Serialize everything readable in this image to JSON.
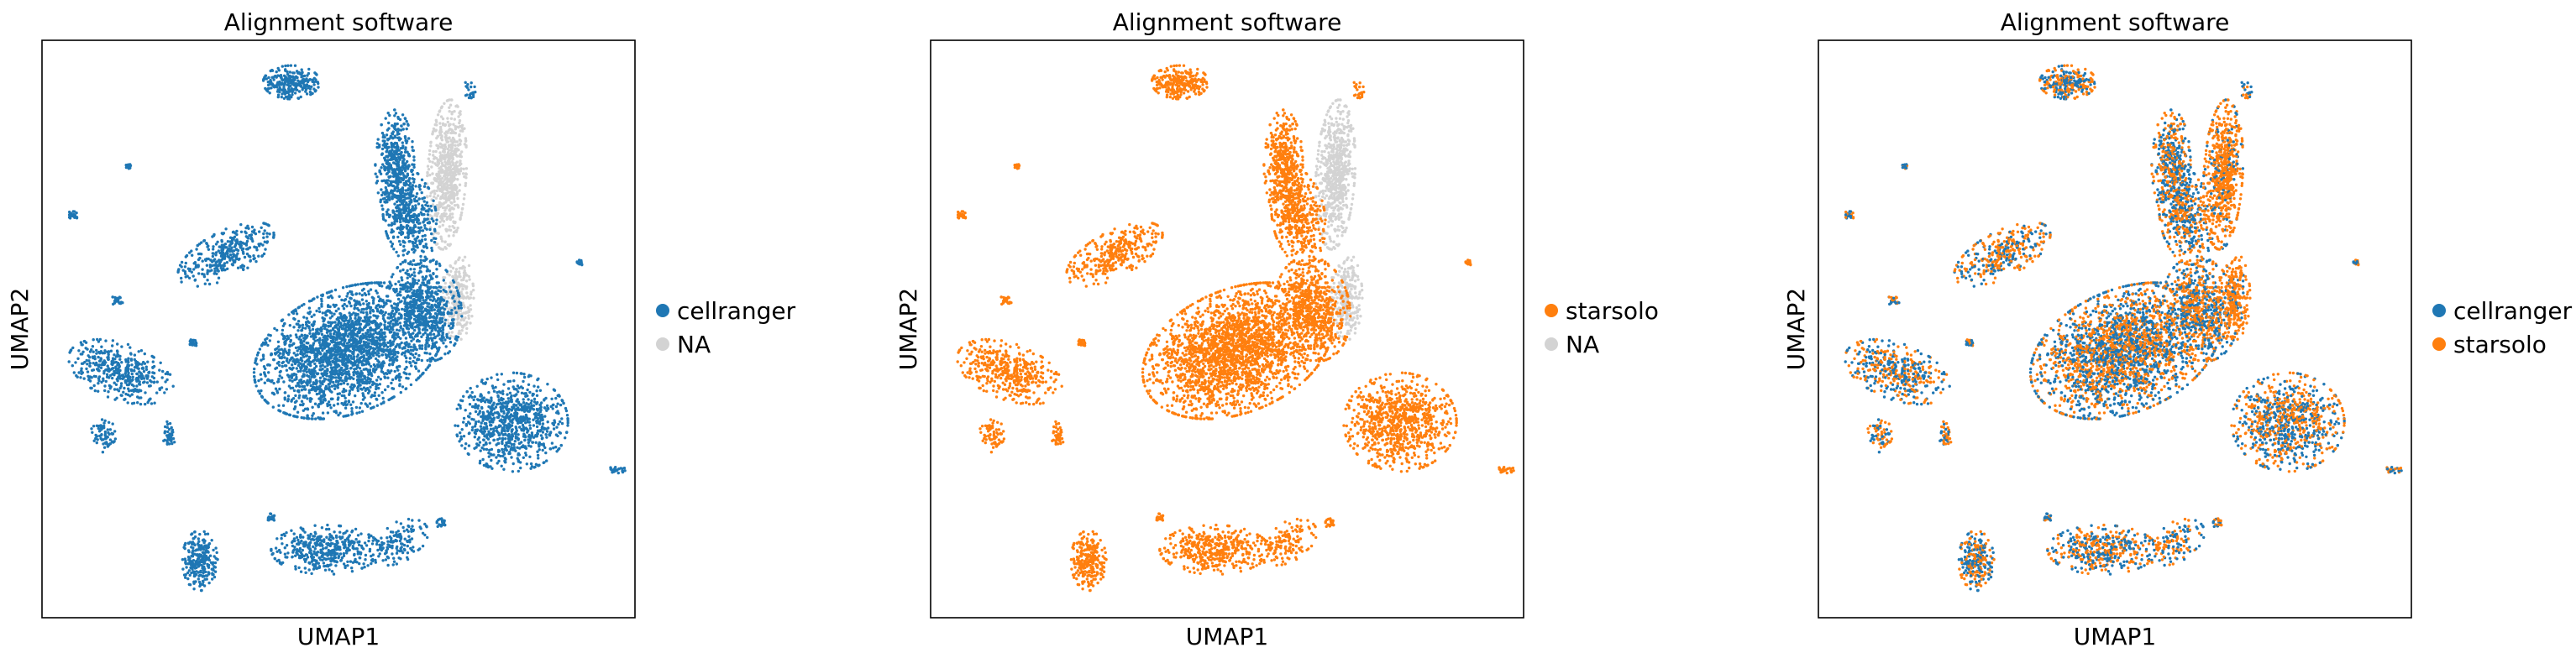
{
  "figure": {
    "colors": {
      "cellranger": "#1f77b4",
      "starsolo": "#ff7f0e",
      "NA": "#d3d3d3",
      "frame": "#000000"
    }
  },
  "chart_data": [
    {
      "type": "scatter",
      "title": "Alignment software",
      "xlabel": "UMAP1",
      "ylabel": "UMAP2",
      "grid": false,
      "ticks": false,
      "legend_position": "right",
      "series": [
        {
          "name": "cellranger",
          "color": "#1f77b4",
          "role": "colored"
        },
        {
          "name": "NA",
          "color": "#d3d3d3",
          "role": "missing"
        }
      ],
      "legend": [
        "cellranger",
        "NA"
      ]
    },
    {
      "type": "scatter",
      "title": "Alignment software",
      "xlabel": "UMAP1",
      "ylabel": "UMAP2",
      "grid": false,
      "ticks": false,
      "legend_position": "right",
      "series": [
        {
          "name": "starsolo",
          "color": "#ff7f0e",
          "role": "colored"
        },
        {
          "name": "NA",
          "color": "#d3d3d3",
          "role": "missing"
        }
      ],
      "legend": [
        "starsolo",
        "NA"
      ]
    },
    {
      "type": "scatter",
      "title": "Alignment software",
      "xlabel": "UMAP1",
      "ylabel": "UMAP2",
      "grid": false,
      "ticks": false,
      "legend_position": "right",
      "series": [
        {
          "name": "cellranger",
          "color": "#1f77b4",
          "role": "colored"
        },
        {
          "name": "starsolo",
          "color": "#ff7f0e",
          "role": "colored"
        }
      ],
      "legend": [
        "cellranger",
        "starsolo"
      ]
    }
  ]
}
